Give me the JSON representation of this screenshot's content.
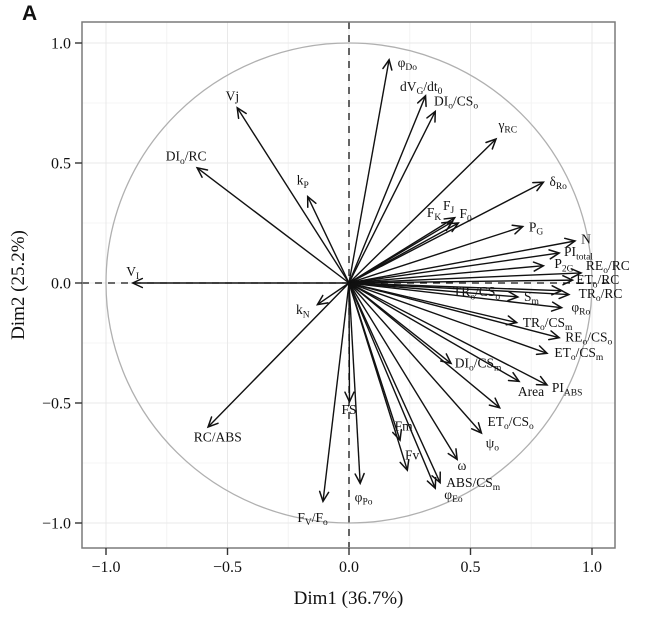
{
  "panel_label": "A",
  "chart_data": {
    "type": "scatter",
    "subtype": "pca_variable_correlation_circle",
    "title": "",
    "xlabel": "Dim1 (36.7%)",
    "ylabel": "Dim2 (25.2%)",
    "xlim": [
      -1.1,
      1.1
    ],
    "ylim": [
      -1.1,
      1.1
    ],
    "xtick_values": [
      -1.0,
      -0.5,
      0.0,
      0.5,
      1.0
    ],
    "xtick_labels": [
      "−1.0",
      "−0.5",
      "0.0",
      "0.5",
      "1.0"
    ],
    "ytick_values": [
      -1.0,
      -0.5,
      0.0,
      0.5,
      1.0
    ],
    "ytick_labels": [
      "−1.0",
      "−0.5",
      "0.0",
      "0.5",
      "1.0"
    ],
    "grid": true,
    "minor_grid": true,
    "unit_circle": true,
    "zero_lines_dashed": true,
    "legend_position": "none",
    "label_syntax": "_{...} denotes subscript",
    "colors": {
      "arrow": "#111111",
      "circle": "#b0b0b0",
      "border": "#7a7a7a",
      "grid_major": "#e9e9e9",
      "grid_minor": "#f4f4f4",
      "text": "#111111",
      "background": "#ffffff"
    },
    "variables": [
      {
        "label": "φ_{Do}",
        "x": 0.165,
        "y": 0.93,
        "lx": 0.2,
        "ly": 0.9,
        "anchor": "start"
      },
      {
        "label": "dV_{G}/dt_{0}",
        "x": 0.315,
        "y": 0.78,
        "lx": 0.21,
        "ly": 0.8,
        "anchor": "start"
      },
      {
        "label": "DI_{o}/CS_{o}",
        "x": 0.355,
        "y": 0.715,
        "lx": 0.35,
        "ly": 0.74,
        "anchor": "start"
      },
      {
        "label": "γ_{RC}",
        "x": 0.605,
        "y": 0.6,
        "lx": 0.615,
        "ly": 0.64,
        "anchor": "start"
      },
      {
        "label": "δ_{Ro}",
        "x": 0.8,
        "y": 0.42,
        "lx": 0.825,
        "ly": 0.405,
        "anchor": "start"
      },
      {
        "label": "Vj",
        "x": -0.46,
        "y": 0.73,
        "lx": -0.48,
        "ly": 0.76,
        "anchor": "middle"
      },
      {
        "label": "DI_{o}/RC",
        "x": -0.625,
        "y": 0.48,
        "lx": -0.67,
        "ly": 0.51,
        "anchor": "middle"
      },
      {
        "label": "k_{P}",
        "x": -0.17,
        "y": 0.36,
        "lx": -0.19,
        "ly": 0.41,
        "anchor": "middle"
      },
      {
        "label": "V_{I}",
        "x": -0.89,
        "y": 0.0,
        "lx": -0.89,
        "ly": 0.03,
        "anchor": "middle"
      },
      {
        "label": "k_{N}",
        "x": -0.13,
        "y": -0.09,
        "lx": -0.19,
        "ly": -0.13,
        "anchor": "middle"
      },
      {
        "label": "F_{K}",
        "x": 0.425,
        "y": 0.255,
        "lx": 0.35,
        "ly": 0.275,
        "anchor": "middle"
      },
      {
        "label": "F_{J}",
        "x": 0.435,
        "y": 0.272,
        "lx": 0.41,
        "ly": 0.305,
        "anchor": "middle"
      },
      {
        "label": "F_{0}",
        "x": 0.45,
        "y": 0.25,
        "lx": 0.48,
        "ly": 0.27,
        "anchor": "middle"
      },
      {
        "label": "P_{G}",
        "x": 0.715,
        "y": 0.235,
        "lx": 0.74,
        "ly": 0.215,
        "anchor": "start"
      },
      {
        "label": "N",
        "x": 0.93,
        "y": 0.175,
        "lx": 0.955,
        "ly": 0.165,
        "anchor": "start"
      },
      {
        "label": "PI_{total}",
        "x": 0.865,
        "y": 0.125,
        "lx": 0.885,
        "ly": 0.112,
        "anchor": "start"
      },
      {
        "label": "P_{2G}",
        "x": 0.8,
        "y": 0.072,
        "lx": 0.845,
        "ly": 0.062,
        "anchor": "start"
      },
      {
        "label": "RE_{o}/RC",
        "x": 0.955,
        "y": 0.042,
        "lx": 0.975,
        "ly": 0.055,
        "anchor": "start"
      },
      {
        "label": "ET_{o}/RC",
        "x": 0.92,
        "y": 0.012,
        "lx": 0.935,
        "ly": -0.005,
        "anchor": "start"
      },
      {
        "label": "TR_{o}/CS_{o}",
        "x": 0.875,
        "y": -0.032,
        "lx": 0.525,
        "ly": -0.055,
        "anchor": "middle"
      },
      {
        "label": "S_{m}",
        "x": 0.695,
        "y": -0.058,
        "lx": 0.72,
        "ly": -0.075,
        "anchor": "start"
      },
      {
        "label": "TR_{o}/RC",
        "x": 0.905,
        "y": -0.048,
        "lx": 0.945,
        "ly": -0.062,
        "anchor": "start"
      },
      {
        "label": "φ_{Ro}",
        "x": 0.875,
        "y": -0.103,
        "lx": 0.915,
        "ly": -0.118,
        "anchor": "start"
      },
      {
        "label": "TR_{o}/CS_{m}",
        "x": 0.69,
        "y": -0.165,
        "lx": 0.715,
        "ly": -0.183,
        "anchor": "start"
      },
      {
        "label": "RE_{o}/CS_{o}",
        "x": 0.865,
        "y": -0.228,
        "lx": 0.89,
        "ly": -0.243,
        "anchor": "start"
      },
      {
        "label": "ET_{o}/CS_{m}",
        "x": 0.815,
        "y": -0.293,
        "lx": 0.845,
        "ly": -0.308,
        "anchor": "start"
      },
      {
        "label": "DI_{o}/CS_{m}",
        "x": 0.42,
        "y": -0.335,
        "lx": 0.435,
        "ly": -0.352,
        "anchor": "start"
      },
      {
        "label": "Area",
        "x": 0.7,
        "y": -0.41,
        "lx": 0.695,
        "ly": -0.47,
        "anchor": "start"
      },
      {
        "label": "PI_{ABS}",
        "x": 0.815,
        "y": -0.425,
        "lx": 0.835,
        "ly": -0.455,
        "anchor": "start"
      },
      {
        "label": "ET_{o}/CS_{o}",
        "x": 0.62,
        "y": -0.52,
        "lx": 0.57,
        "ly": -0.595,
        "anchor": "start"
      },
      {
        "label": "ψ_{o}",
        "x": 0.545,
        "y": -0.625,
        "lx": 0.59,
        "ly": -0.685,
        "anchor": "middle"
      },
      {
        "label": "ω",
        "x": 0.445,
        "y": -0.735,
        "lx": 0.465,
        "ly": -0.78,
        "anchor": "middle"
      },
      {
        "label": "ABS/CS_{m}",
        "x": 0.375,
        "y": -0.832,
        "lx": 0.4,
        "ly": -0.85,
        "anchor": "start"
      },
      {
        "label": "φ_{Eo}",
        "x": 0.355,
        "y": -0.855,
        "lx": 0.43,
        "ly": -0.9,
        "anchor": "middle"
      },
      {
        "label": "Fm",
        "x": 0.21,
        "y": -0.655,
        "lx": 0.225,
        "ly": -0.615,
        "anchor": "middle"
      },
      {
        "label": "Fv",
        "x": 0.24,
        "y": -0.78,
        "lx": 0.26,
        "ly": -0.735,
        "anchor": "middle"
      },
      {
        "label": "FS",
        "x": 0.002,
        "y": -0.495,
        "lx": 0.0,
        "ly": -0.545,
        "anchor": "middle"
      },
      {
        "label": "φ_{Po}",
        "x": 0.046,
        "y": -0.835,
        "lx": 0.06,
        "ly": -0.91,
        "anchor": "middle"
      },
      {
        "label": "F_{V}/F_{o}",
        "x": -0.107,
        "y": -0.91,
        "lx": -0.15,
        "ly": -0.995,
        "anchor": "middle"
      },
      {
        "label": "RC/ABS",
        "x": -0.58,
        "y": -0.6,
        "lx": -0.54,
        "ly": -0.66,
        "anchor": "middle"
      }
    ]
  }
}
